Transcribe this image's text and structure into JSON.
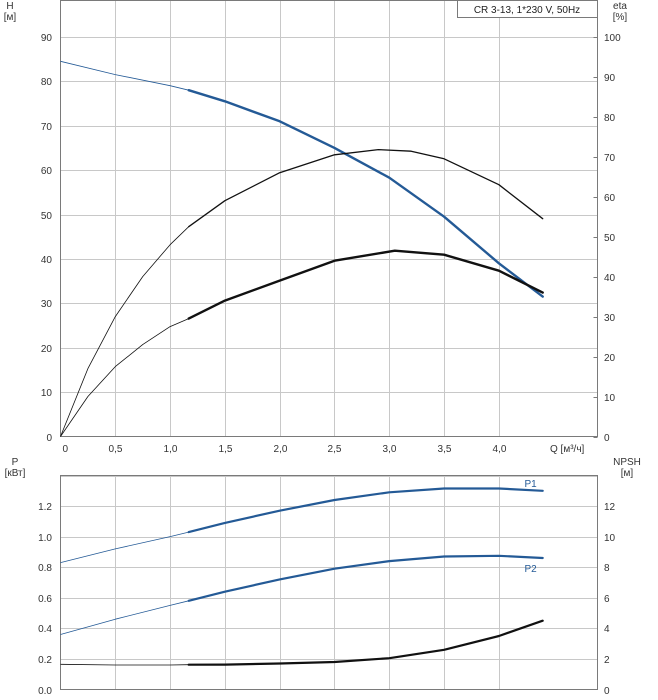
{
  "model_label": "CR 3-13, 1*230 V, 50Hz",
  "colors": {
    "pump_curve": "#245a96",
    "efficiency_curve": "#111111",
    "power_curve": "#245a96",
    "npsh_curve": "#111111",
    "grid": "#c8c8c8",
    "frame": "#7a7a7a"
  },
  "chart_data": [
    {
      "type": "line",
      "xlabel": "Q [м³/ч]",
      "ylabel": "H\n[м]",
      "y2label": "eta\n[%]",
      "xlim": [
        0,
        4.9
      ],
      "ylim": [
        0,
        90
      ],
      "y2lim": [
        0,
        100
      ],
      "x_ticks": [
        "0",
        "0,5",
        "1,0",
        "1,5",
        "2,0",
        "2,5",
        "3,0",
        "3,5",
        "4,0"
      ],
      "y_ticks": [
        "0",
        "10",
        "20",
        "30",
        "40",
        "50",
        "60",
        "70",
        "80",
        "90"
      ],
      "y2_ticks": [
        "0",
        "10",
        "20",
        "30",
        "40",
        "50",
        "60",
        "70",
        "80",
        "90",
        "100"
      ],
      "grid": true,
      "series": [
        {
          "key": "head",
          "axis": "left",
          "color": "#245a96",
          "operating_from": 1.17,
          "x": [
            0,
            0.5,
            1.0,
            1.17,
            1.5,
            2.0,
            2.5,
            3.0,
            3.5,
            4.0,
            4.4
          ],
          "y": [
            84.5,
            81.5,
            79,
            78,
            75.5,
            71,
            65,
            58.3,
            49.5,
            39,
            31.5
          ]
        },
        {
          "key": "efficiency",
          "axis": "right",
          "color": "#111111",
          "operating_from": 1.17,
          "x": [
            0,
            0.25,
            0.5,
            0.75,
            1.0,
            1.17,
            1.5,
            2.0,
            2.5,
            2.9,
            3.2,
            3.5,
            4.0,
            4.4
          ],
          "y": [
            0,
            17,
            30,
            40,
            48,
            52.5,
            59,
            66,
            70.5,
            71.8,
            71.4,
            69.5,
            63,
            54.5
          ]
        },
        {
          "key": "efficiency-2",
          "axis": "right",
          "color": "#111111",
          "operating_from": 1.17,
          "x": [
            0,
            0.25,
            0.5,
            0.75,
            1.0,
            1.17,
            1.5,
            2.0,
            2.5,
            3.05,
            3.5,
            4.0,
            4.4
          ],
          "y": [
            0,
            10,
            17.5,
            23,
            27.5,
            29.5,
            34,
            39,
            44,
            46.5,
            45.5,
            41.5,
            36
          ]
        }
      ]
    },
    {
      "type": "line",
      "xlabel": "",
      "ylabel": "P\n[кВт]",
      "y2label": "NPSH\n[м]",
      "xlim": [
        0,
        4.9
      ],
      "ylim": [
        0,
        1.4
      ],
      "y2lim": [
        0,
        14
      ],
      "y_ticks": [
        "0.0",
        "0.2",
        "0.4",
        "0.6",
        "0.8",
        "1.0",
        "1.2"
      ],
      "y2_ticks": [
        "0",
        "2",
        "4",
        "6",
        "8",
        "10",
        "12"
      ],
      "grid": true,
      "series": [
        {
          "name": "P1",
          "axis": "left",
          "color": "#245a96",
          "operating_from": 1.17,
          "x": [
            0,
            0.5,
            1.0,
            1.17,
            1.5,
            2.0,
            2.5,
            3.0,
            3.5,
            4.0,
            4.4
          ],
          "y": [
            0.83,
            0.92,
            1.0,
            1.03,
            1.09,
            1.17,
            1.24,
            1.29,
            1.315,
            1.315,
            1.3
          ]
        },
        {
          "name": "P2",
          "axis": "left",
          "color": "#245a96",
          "operating_from": 1.17,
          "x": [
            0,
            0.5,
            1.0,
            1.17,
            1.5,
            2.0,
            2.5,
            3.0,
            3.5,
            4.0,
            4.4
          ],
          "y": [
            0.36,
            0.46,
            0.55,
            0.58,
            0.64,
            0.72,
            0.79,
            0.84,
            0.87,
            0.875,
            0.86
          ]
        },
        {
          "key": "npsh",
          "axis": "right",
          "color": "#111111",
          "operating_from": 1.17,
          "x": [
            0,
            0.5,
            1.0,
            1.17,
            1.5,
            2.0,
            2.5,
            3.0,
            3.5,
            4.0,
            4.4
          ],
          "y": [
            1.65,
            1.6,
            1.6,
            1.62,
            1.63,
            1.7,
            1.8,
            2.05,
            2.6,
            3.5,
            4.5
          ]
        }
      ]
    }
  ]
}
